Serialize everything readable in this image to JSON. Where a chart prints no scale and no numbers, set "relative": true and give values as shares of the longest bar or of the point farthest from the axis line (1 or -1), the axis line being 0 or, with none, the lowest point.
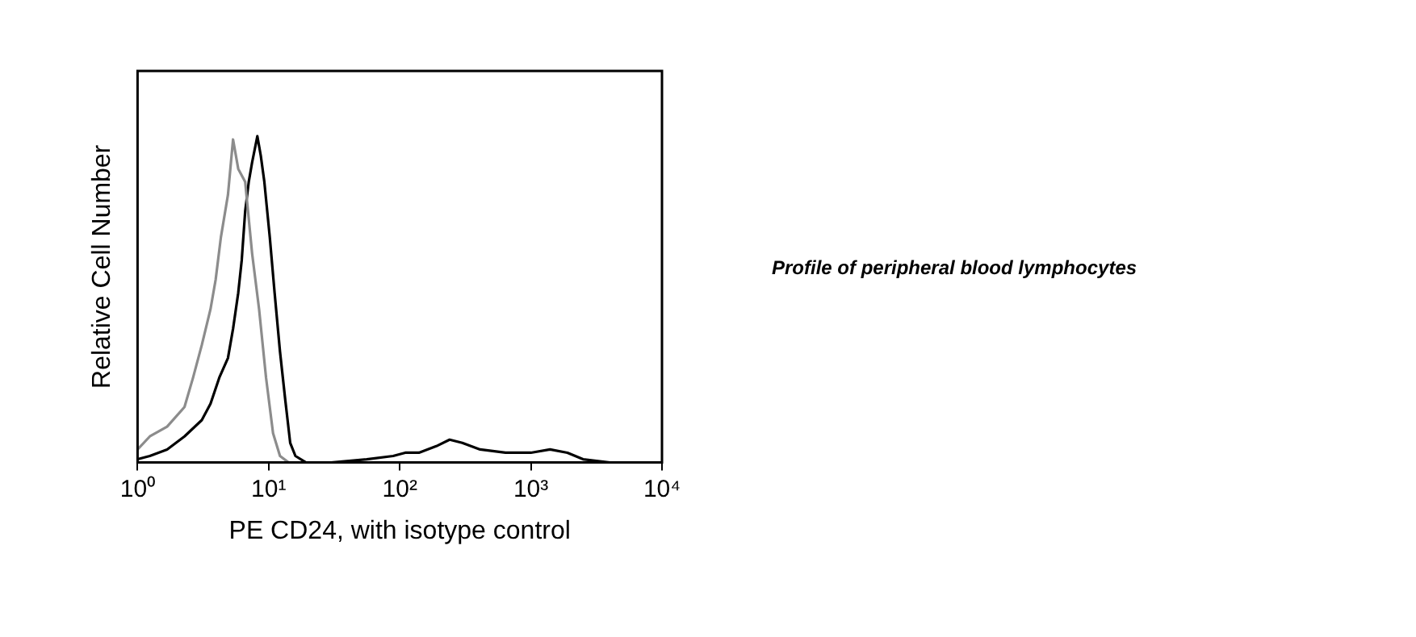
{
  "chart_data": {
    "type": "line",
    "relative": true,
    "log": "x",
    "xlabel": "PE CD24, with isotype control",
    "ylabel": "Relative Cell Number",
    "annotations": [
      "Profile of peripheral blood lymphocytes"
    ],
    "xlim": [
      1,
      10000
    ],
    "xticks": [
      {
        "value": 1,
        "label": "10⁰"
      },
      {
        "value": 10,
        "label": "10¹"
      },
      {
        "value": 100,
        "label": "10²"
      },
      {
        "value": 1000,
        "label": "10³"
      },
      {
        "value": 10000,
        "label": "10⁴"
      }
    ],
    "grid": false,
    "legend": false,
    "marker": "none",
    "line_style": "solid",
    "series": [
      {
        "color": "#8c8c8c",
        "x": [
          1,
          1.24,
          1.68,
          2.28,
          2.65,
          3.09,
          3.6,
          3.94,
          4.32,
          4.89,
          5.35,
          5.86,
          6.62,
          7.48,
          8.45,
          9.55,
          10.8,
          12.2,
          14.2
        ],
        "values": [
          0.04,
          0.08,
          0.11,
          0.17,
          0.26,
          0.36,
          0.47,
          0.56,
          0.69,
          0.82,
          0.99,
          0.9,
          0.86,
          0.64,
          0.47,
          0.26,
          0.09,
          0.02,
          0
        ]
      },
      {
        "color": "#000000",
        "x": [
          1,
          1.24,
          1.68,
          2.28,
          3.09,
          3.6,
          4.2,
          4.89,
          5.35,
          5.86,
          6.23,
          6.62,
          7.05,
          7.48,
          8.2,
          8.71,
          9.27,
          10.2,
          11.1,
          12.2,
          13.4,
          14.6,
          16,
          19.3,
          30,
          56,
          89,
          110,
          140,
          190,
          240,
          300,
          410,
          640,
          1000,
          1400,
          1900,
          2500,
          4000,
          6300
        ],
        "values": [
          0.01,
          0.02,
          0.04,
          0.08,
          0.13,
          0.18,
          0.26,
          0.32,
          0.41,
          0.52,
          0.62,
          0.77,
          0.86,
          0.92,
          1,
          0.94,
          0.86,
          0.69,
          0.52,
          0.34,
          0.19,
          0.06,
          0.02,
          0,
          0,
          0.01,
          0.02,
          0.03,
          0.03,
          0.05,
          0.07,
          0.06,
          0.04,
          0.03,
          0.03,
          0.04,
          0.03,
          0.01,
          0,
          0
        ]
      }
    ]
  }
}
